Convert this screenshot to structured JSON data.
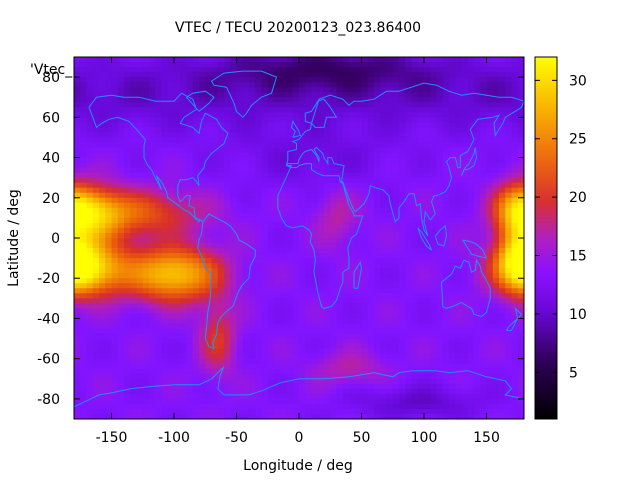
{
  "chart_data": {
    "type": "heatmap",
    "title": "VTEC / TECU 20200123_023.86400",
    "xlabel": "Longitude / deg",
    "ylabel": "Latitude / deg",
    "xlim": [
      -180,
      180
    ],
    "ylim": [
      -90,
      90
    ],
    "x_ticks": [
      -150,
      -100,
      -50,
      0,
      50,
      100,
      150
    ],
    "y_ticks": [
      -80,
      -60,
      -40,
      -20,
      0,
      20,
      40,
      60,
      80
    ],
    "series_key": "'Vtec_",
    "colorbar": {
      "min": 1,
      "max": 32,
      "ticks": [
        5,
        10,
        15,
        20,
        25,
        30
      ]
    },
    "field_peaks": [
      {
        "lon": -175,
        "lat": -15,
        "vtec": 30
      },
      {
        "lon": -165,
        "lat": 12,
        "vtec": 26
      },
      {
        "lon": -100,
        "lat": -18,
        "vtec": 27
      },
      {
        "lon": 178,
        "lat": -12,
        "vtec": 27
      },
      {
        "lon": 175,
        "lat": 15,
        "vtec": 22
      }
    ],
    "colors": {
      "background_mid": "#7a10ff",
      "coastline": "#1e90ff",
      "frame": "#000000"
    }
  }
}
